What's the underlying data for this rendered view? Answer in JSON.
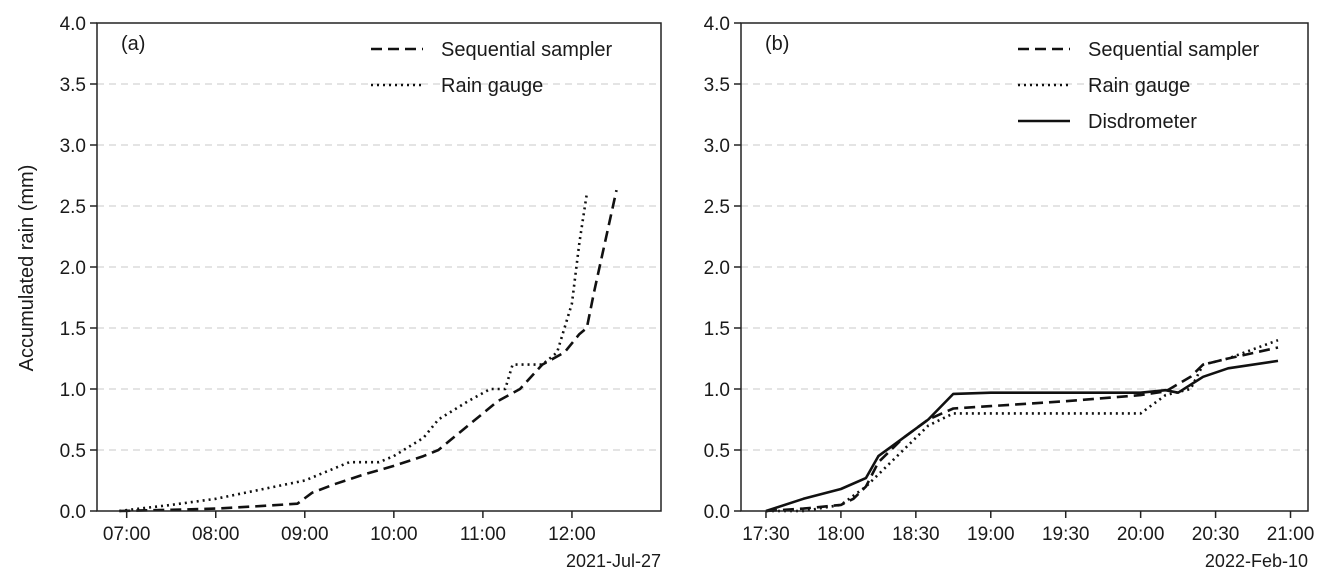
{
  "chart_data": [
    {
      "type": "line",
      "panel_label": "(a)",
      "ylabel": "Accumulated rain (mm)",
      "date_label": "2021-Jul-27",
      "x_ticks": [
        "07:00",
        "08:00",
        "09:00",
        "10:00",
        "11:00",
        "12:00"
      ],
      "y_ticks": [
        "0.0",
        "0.5",
        "1.0",
        "1.5",
        "2.0",
        "2.5",
        "3.0",
        "3.5",
        "4.0"
      ],
      "xlim": [
        "06:40",
        "13:00"
      ],
      "ylim": [
        0,
        4
      ],
      "grid": "horizontal dashed",
      "legend_position": "top-right",
      "series": [
        {
          "name": "Sequential sampler",
          "style": "dashed",
          "points": [
            [
              "06:55",
              0.0
            ],
            [
              "07:30",
              0.01
            ],
            [
              "08:00",
              0.02
            ],
            [
              "08:30",
              0.04
            ],
            [
              "08:55",
              0.06
            ],
            [
              "09:05",
              0.15
            ],
            [
              "09:20",
              0.22
            ],
            [
              "09:40",
              0.3
            ],
            [
              "10:00",
              0.37
            ],
            [
              "10:20",
              0.45
            ],
            [
              "10:30",
              0.5
            ],
            [
              "10:45",
              0.65
            ],
            [
              "11:00",
              0.8
            ],
            [
              "11:10",
              0.9
            ],
            [
              "11:25",
              1.0
            ],
            [
              "11:40",
              1.2
            ],
            [
              "11:55",
              1.3
            ],
            [
              "12:05",
              1.45
            ],
            [
              "12:10",
              1.5
            ],
            [
              "12:15",
              1.8
            ],
            [
              "12:30",
              2.63
            ]
          ]
        },
        {
          "name": "Rain gauge",
          "style": "dotted",
          "points": [
            [
              "06:55",
              0.0
            ],
            [
              "07:30",
              0.05
            ],
            [
              "08:00",
              0.1
            ],
            [
              "08:40",
              0.2
            ],
            [
              "09:00",
              0.25
            ],
            [
              "09:30",
              0.4
            ],
            [
              "09:50",
              0.4
            ],
            [
              "10:00",
              0.45
            ],
            [
              "10:20",
              0.6
            ],
            [
              "10:30",
              0.75
            ],
            [
              "10:50",
              0.9
            ],
            [
              "11:05",
              1.0
            ],
            [
              "11:15",
              1.0
            ],
            [
              "11:20",
              1.2
            ],
            [
              "11:40",
              1.2
            ],
            [
              "11:50",
              1.3
            ],
            [
              "12:00",
              1.7
            ],
            [
              "12:05",
              2.2
            ],
            [
              "12:10",
              2.6
            ]
          ]
        }
      ]
    },
    {
      "type": "line",
      "panel_label": "(b)",
      "ylabel": "",
      "date_label": "2022-Feb-10",
      "x_ticks": [
        "17:30",
        "18:00",
        "18:30",
        "19:00",
        "19:30",
        "20:00",
        "20:30",
        "21:00"
      ],
      "y_ticks": [
        "0.0",
        "0.5",
        "1.0",
        "1.5",
        "2.0",
        "2.5",
        "3.0",
        "3.5",
        "4.0"
      ],
      "xlim": [
        "17:20",
        "21:07"
      ],
      "ylim": [
        0,
        4
      ],
      "grid": "horizontal dashed",
      "legend_position": "top-right",
      "series": [
        {
          "name": "Sequential sampler",
          "style": "dashed",
          "points": [
            [
              "17:30",
              0.0
            ],
            [
              "17:45",
              0.02
            ],
            [
              "18:00",
              0.05
            ],
            [
              "18:05",
              0.1
            ],
            [
              "18:10",
              0.2
            ],
            [
              "18:15",
              0.4
            ],
            [
              "18:20",
              0.5
            ],
            [
              "18:25",
              0.6
            ],
            [
              "18:35",
              0.75
            ],
            [
              "18:45",
              0.84
            ],
            [
              "19:00",
              0.86
            ],
            [
              "19:30",
              0.9
            ],
            [
              "20:00",
              0.95
            ],
            [
              "20:10",
              0.98
            ],
            [
              "20:20",
              1.1
            ],
            [
              "20:25",
              1.2
            ],
            [
              "20:35",
              1.25
            ],
            [
              "20:55",
              1.34
            ]
          ]
        },
        {
          "name": "Rain gauge",
          "style": "dotted",
          "points": [
            [
              "17:30",
              0.0
            ],
            [
              "17:45",
              0.0
            ],
            [
              "18:00",
              0.05
            ],
            [
              "18:10",
              0.2
            ],
            [
              "18:15",
              0.3
            ],
            [
              "18:20",
              0.4
            ],
            [
              "18:25",
              0.5
            ],
            [
              "18:35",
              0.7
            ],
            [
              "18:45",
              0.8
            ],
            [
              "19:00",
              0.8
            ],
            [
              "19:30",
              0.8
            ],
            [
              "20:00",
              0.8
            ],
            [
              "20:10",
              0.95
            ],
            [
              "20:20",
              1.0
            ],
            [
              "20:25",
              1.2
            ],
            [
              "20:35",
              1.25
            ],
            [
              "20:55",
              1.4
            ]
          ]
        },
        {
          "name": "Disdrometer",
          "style": "solid",
          "points": [
            [
              "17:30",
              0.0
            ],
            [
              "17:45",
              0.1
            ],
            [
              "18:00",
              0.18
            ],
            [
              "18:10",
              0.27
            ],
            [
              "18:15",
              0.45
            ],
            [
              "18:25",
              0.6
            ],
            [
              "18:35",
              0.75
            ],
            [
              "18:45",
              0.96
            ],
            [
              "19:00",
              0.97
            ],
            [
              "19:30",
              0.97
            ],
            [
              "20:00",
              0.97
            ],
            [
              "20:10",
              0.99
            ],
            [
              "20:15",
              0.97
            ],
            [
              "20:25",
              1.1
            ],
            [
              "20:35",
              1.17
            ],
            [
              "20:55",
              1.23
            ]
          ]
        }
      ]
    }
  ]
}
